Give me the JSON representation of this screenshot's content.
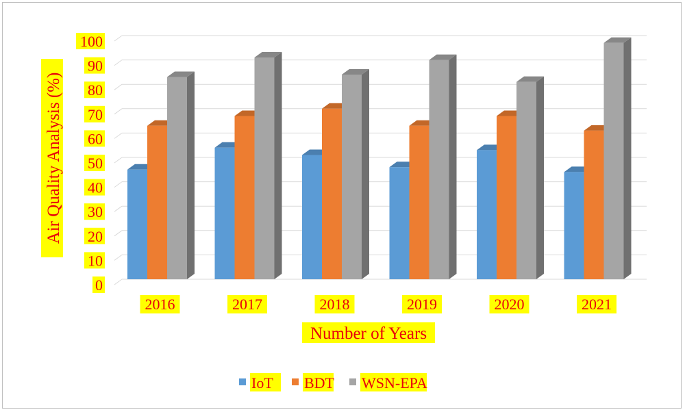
{
  "chart_data": {
    "type": "bar",
    "ylabel": "Air Quality Analysis (%)",
    "xlabel": "Number of Years",
    "categories": [
      "2016",
      "2017",
      "2018",
      "2019",
      "2020",
      "2021"
    ],
    "ylim": [
      0,
      100
    ],
    "yticks": [
      "0",
      "10",
      "20",
      "30",
      "40",
      "50",
      "60",
      "70",
      "80",
      "90",
      "100"
    ],
    "grid": true,
    "legend_position": "bottom",
    "series": [
      {
        "name": "IoT",
        "color": "#5b9bd5",
        "values": [
          45,
          54,
          51,
          46,
          53,
          44
        ]
      },
      {
        "name": "BDT",
        "color": "#ed7d31",
        "values": [
          63,
          67,
          70,
          63,
          67,
          61
        ]
      },
      {
        "name": "WSN-EPA",
        "color": "#a5a5a5",
        "values": [
          83,
          91,
          84,
          90,
          81,
          97
        ]
      }
    ]
  }
}
